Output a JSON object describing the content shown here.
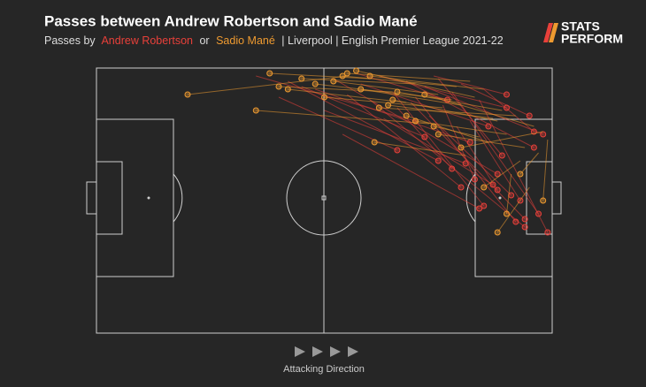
{
  "chart_data": {
    "type": "pass-map",
    "title": "Passes between Andrew Robertson and Sadio Mané",
    "subtitle": {
      "prefix": "Passes by",
      "joiner": "or",
      "suffix": "| Liverpool | English Premier League 2021-22"
    },
    "logo": [
      "STATS",
      "PERFORM"
    ],
    "direction_label": "Attacking Direction",
    "xlim": [
      0,
      100
    ],
    "ylim": [
      0,
      100
    ],
    "series": [
      {
        "name": "Andrew Robertson",
        "color": "#e8403a",
        "start_x": [
          35,
          42,
          48,
          52,
          55,
          58,
          60,
          62,
          65,
          66,
          68,
          70,
          72,
          73,
          75,
          76,
          78,
          80,
          82,
          84,
          45,
          50,
          57,
          63,
          69,
          74,
          79,
          85,
          40,
          54
        ],
        "start_y": [
          3,
          5,
          8,
          4,
          10,
          6,
          12,
          3,
          9,
          15,
          5,
          11,
          7,
          18,
          4,
          14,
          9,
          6,
          20,
          12,
          7,
          16,
          2,
          19,
          13,
          3,
          22,
          8,
          11,
          25
        ],
        "end_x": [
          70,
          75,
          82,
          88,
          80,
          86,
          94,
          90,
          85,
          78,
          96,
          92,
          98,
          91,
          89,
          83,
          97,
          95,
          93,
          99,
          72,
          81,
          77,
          87,
          94,
          90,
          88,
          96,
          66,
          84
        ],
        "end_y": [
          20,
          35,
          28,
          40,
          45,
          22,
          60,
          15,
          52,
          38,
          30,
          58,
          25,
          48,
          33,
          42,
          55,
          18,
          50,
          62,
          26,
          36,
          12,
          44,
          57,
          10,
          46,
          24,
          31,
          53
        ]
      },
      {
        "name": "Sadio Mané",
        "color": "#ee9a30",
        "start_x": [
          75,
          80,
          85,
          88,
          90,
          92,
          94,
          96,
          82,
          78,
          86,
          98,
          70,
          65,
          60,
          55,
          93,
          89,
          84,
          91,
          97,
          76,
          87,
          95,
          83,
          79,
          73,
          68,
          99,
          81
        ],
        "start_y": [
          10,
          14,
          8,
          20,
          25,
          18,
          30,
          22,
          5,
          12,
          28,
          24,
          6,
          9,
          4,
          3,
          35,
          16,
          26,
          40,
          32,
          15,
          19,
          45,
          11,
          7,
          21,
          13,
          27,
          33
        ],
        "end_x": [
          52,
          58,
          60,
          65,
          70,
          62,
          75,
          72,
          55,
          48,
          68,
          80,
          45,
          40,
          38,
          20,
          85,
          66,
          74,
          90,
          93,
          50,
          64,
          88,
          57,
          54,
          35,
          42,
          98,
          61
        ],
        "end_y": [
          5,
          8,
          3,
          12,
          20,
          15,
          25,
          10,
          2,
          6,
          18,
          30,
          4,
          7,
          2,
          10,
          45,
          9,
          22,
          55,
          40,
          11,
          14,
          62,
          1,
          3,
          16,
          8,
          50,
          28
        ]
      }
    ]
  }
}
